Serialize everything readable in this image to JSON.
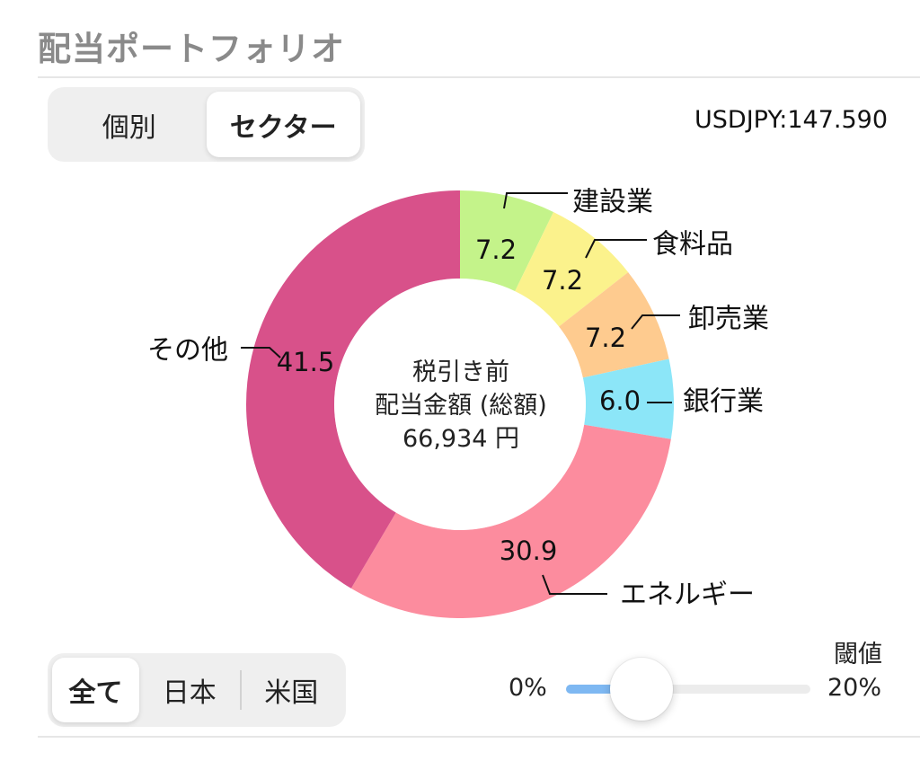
{
  "page": {
    "title": "配当ポートフォリオ"
  },
  "view_toggle": {
    "items": [
      {
        "label": "個別",
        "active": false
      },
      {
        "label": "セクター",
        "active": true
      }
    ]
  },
  "exchange_rate": "USDJPY:147.590",
  "center": {
    "line1": "税引き前",
    "line2": "配当金額 (総額)",
    "line3": "66,934 円"
  },
  "region_filter": {
    "items": [
      {
        "label": "全て",
        "active": true
      },
      {
        "label": "日本",
        "active": false
      },
      {
        "label": "米国",
        "active": false
      }
    ]
  },
  "threshold": {
    "label": "閾値",
    "min_label": "0%",
    "max_label": "20%",
    "value_fraction": 0.31
  },
  "chart_data": {
    "type": "pie",
    "unit": "%",
    "slices": [
      {
        "name": "建設業",
        "value": 7.2,
        "value_label": "7.2",
        "color": "#c4f38a"
      },
      {
        "name": "食料品",
        "value": 7.2,
        "value_label": "7.2",
        "color": "#fbf28c"
      },
      {
        "name": "卸売業",
        "value": 7.2,
        "value_label": "7.2",
        "color": "#fecb8f"
      },
      {
        "name": "銀行業",
        "value": 6.0,
        "value_label": "6.0",
        "color": "#8ce6f8"
      },
      {
        "name": "エネルギー",
        "value": 30.9,
        "value_label": "30.9",
        "color": "#fc8c9e"
      },
      {
        "name": "その他",
        "value": 41.5,
        "value_label": "41.5",
        "color": "#d8518a"
      }
    ]
  }
}
